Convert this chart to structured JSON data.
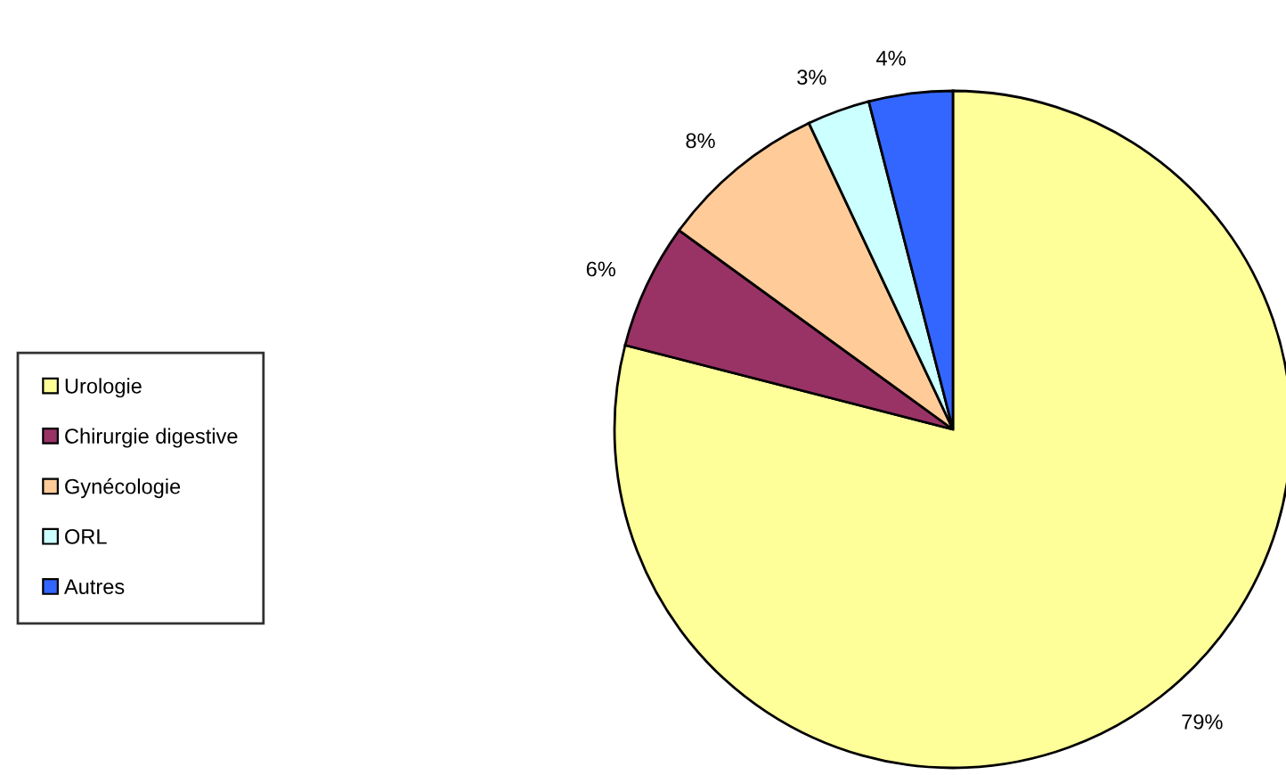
{
  "chart_data": {
    "type": "pie",
    "categories": [
      "Urologie",
      "Chirurgie digestive",
      "Gynécologie",
      "ORL",
      "Autres"
    ],
    "values": [
      79,
      6,
      8,
      3,
      4
    ],
    "value_labels": [
      "79%",
      "6%",
      "8%",
      "3%",
      "4%"
    ],
    "colors": [
      "#ffff99",
      "#993366",
      "#ffcc99",
      "#ccffff",
      "#3366ff"
    ],
    "legend": "left"
  }
}
